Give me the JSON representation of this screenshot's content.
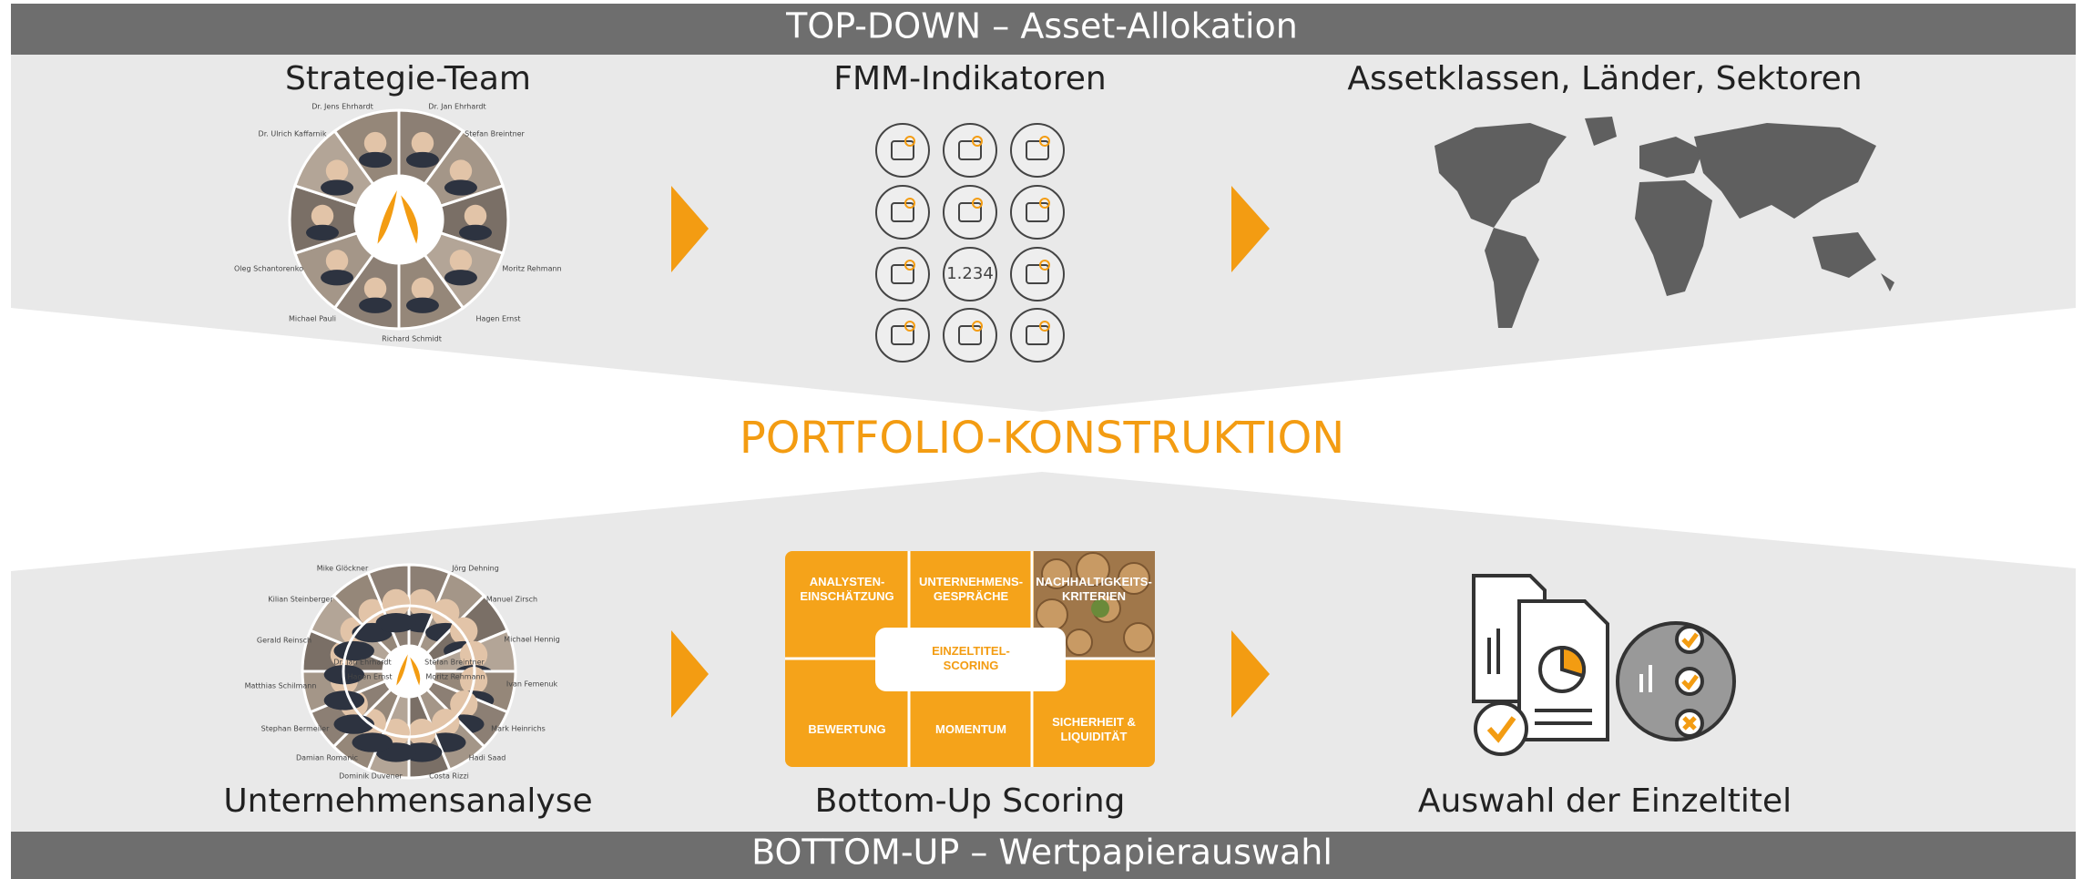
{
  "header": {
    "top": "TOP-DOWN – Asset-Allokation",
    "bottom": "BOTTOM-UP – Wertpapierauswahl",
    "center": "PORTFOLIO-KONSTRUKTION"
  },
  "top": {
    "columns": [
      "Strategie-Team",
      "FMM-Indikatoren",
      "Assetklassen, Länder, Sektoren"
    ],
    "team": [
      "Dr. Jens Ehrhardt",
      "Dr. Jan Ehrhardt",
      "Dr. Ulrich Kaffarnik",
      "Stefan Breintner",
      "Oleg Schantorenko",
      "Moritz Rehmann",
      "Michael Pauli",
      "Hagen Ernst",
      "Richard Schmidt"
    ],
    "indicator_text": "1.234"
  },
  "bottom": {
    "columns": [
      "Unternehmensanalyse",
      "Bottom-Up Scoring",
      "Auswahl der Einzeltitel"
    ],
    "team": [
      "Mike Glöckner",
      "Jörg Dehning",
      "Kilian Steinberger",
      "Manuel Zirsch",
      "Gerald Reinsch",
      "Michael Hennig",
      "Dr. Jan Ehrhardt",
      "Stefan Breintner",
      "Hagen Ernst",
      "Moritz Rehmann",
      "Matthias Schilmann",
      "Ivan Femenuk",
      "Stephan Bermeiler",
      "Mark Heinrichs",
      "Damian Romanic",
      "Hadi Saad",
      "Dominik Duvener",
      "Costa Rizzi"
    ],
    "scoring": {
      "cells": [
        "ANALYSTEN-\nEINSCHÄTZUNG",
        "UNTERNEHMENS-\nGESPRÄCHE",
        "NACHHALTIGKEITS-\nKRITERIEN",
        "BEWERTUNG",
        "MOMENTUM",
        "SICHERHEIT &\nLIQUIDITÄT"
      ],
      "center": "EINZELTITEL-\nSCORING"
    }
  }
}
